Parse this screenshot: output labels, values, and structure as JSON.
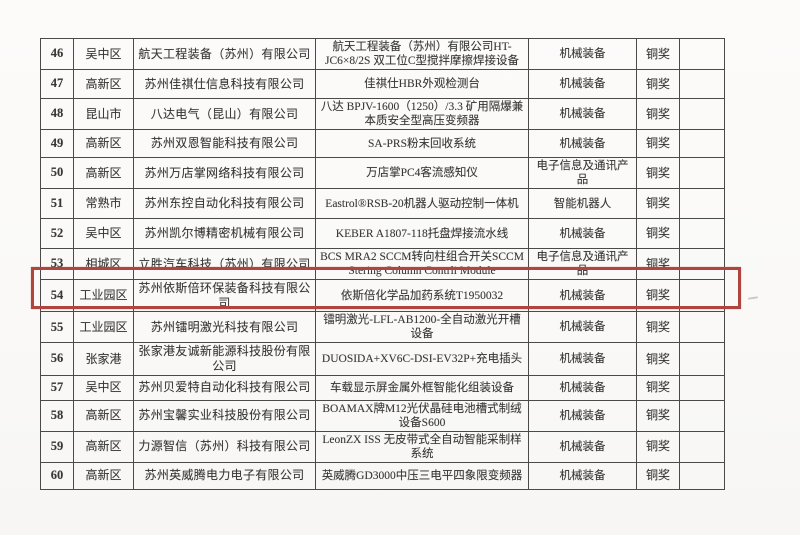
{
  "colors": {
    "highlight_box": "#b0453f",
    "table_border": "#4a4a4a",
    "text": "#373737",
    "paper": "#fbfaf8"
  },
  "table": {
    "highlighted_row_no": "54",
    "award_label": "铜奖",
    "rows": [
      {
        "no": "46",
        "district": "吴中区",
        "company": "航天工程装备（苏州）有限公司",
        "product": "航天工程装备（苏州）有限公司HT-JC6×8/2S 双工位C型搅拌摩擦焊接设备",
        "category": "机械装备",
        "award": "铜奖",
        "blank": ""
      },
      {
        "no": "47",
        "district": "高新区",
        "company": "苏州佳祺仕信息科技有限公司",
        "product": "佳祺仕HBR外观检测台",
        "category": "机械装备",
        "award": "铜奖",
        "blank": ""
      },
      {
        "no": "48",
        "district": "昆山市",
        "company": "八达电气（昆山）有限公司",
        "product": "八达 BPJV-1600（1250）/3.3 矿用隔爆兼本质安全型高压变频器",
        "category": "机械装备",
        "award": "铜奖",
        "blank": ""
      },
      {
        "no": "49",
        "district": "高新区",
        "company": "苏州双恩智能科技有限公司",
        "product": "SA-PRS粉末回收系统",
        "category": "机械装备",
        "award": "铜奖",
        "blank": ""
      },
      {
        "no": "50",
        "district": "高新区",
        "company": "苏州万店掌网络科技有限公司",
        "product": "万店掌PC4客流感知仪",
        "category": "电子信息及通讯产品",
        "award": "铜奖",
        "blank": ""
      },
      {
        "no": "51",
        "district": "常熟市",
        "company": "苏州东控自动化科技有限公司",
        "product": "Eastrol®RSB-20机器人驱动控制一体机",
        "category": "智能机器人",
        "award": "铜奖",
        "blank": ""
      },
      {
        "no": "52",
        "district": "吴中区",
        "company": "苏州凯尔博精密机械有限公司",
        "product": "KEBER A1807-118托盘焊接流水线",
        "category": "机械装备",
        "award": "铜奖",
        "blank": ""
      },
      {
        "no": "53",
        "district": "相城区",
        "company": "立胜汽车科技（苏州）有限公司",
        "product": "BCS MRA2 SCCM转向柱组合开关SCCM Stering Column Contrli Module",
        "category": "电子信息及通讯产品",
        "award": "铜奖",
        "blank": ""
      },
      {
        "no": "54",
        "district": "工业园区",
        "company": "苏州依斯倍环保装备科技有限公司",
        "product": "依斯倍化学品加药系统T1950032",
        "category": "机械装备",
        "award": "铜奖",
        "blank": ""
      },
      {
        "no": "55",
        "district": "工业园区",
        "company": "苏州镭明激光科技有限公司",
        "product": "镭明激光-LFL-AB1200-全自动激光开槽设备",
        "category": "机械装备",
        "award": "铜奖",
        "blank": ""
      },
      {
        "no": "56",
        "district": "张家港",
        "company": "张家港友诚新能源科技股份有限公司",
        "product": "DUOSIDA+XV6C-DSI-EV32P+充电插头",
        "category": "机械装备",
        "award": "铜奖",
        "blank": ""
      },
      {
        "no": "57",
        "district": "吴中区",
        "company": "苏州贝爱特自动化科技有限公司",
        "product": "车载显示屏金属外框智能化组装设备",
        "category": "机械装备",
        "award": "铜奖",
        "blank": ""
      },
      {
        "no": "58",
        "district": "高新区",
        "company": "苏州宝馨实业科技股份有限公司",
        "product": "BOAMAX牌M12光伏晶硅电池槽式制绒设备S600",
        "category": "机械装备",
        "award": "铜奖",
        "blank": ""
      },
      {
        "no": "59",
        "district": "高新区",
        "company": "力源智信（苏州）科技有限公司",
        "product": "LeonZX ISS 无皮带式全自动智能采制样系统",
        "category": "机械装备",
        "award": "铜奖",
        "blank": ""
      },
      {
        "no": "60",
        "district": "高新区",
        "company": "苏州英威腾电力电子有限公司",
        "product": "英威腾GD3000中压三电平四象限变频器",
        "category": "机械装备",
        "award": "铜奖",
        "blank": ""
      }
    ]
  }
}
